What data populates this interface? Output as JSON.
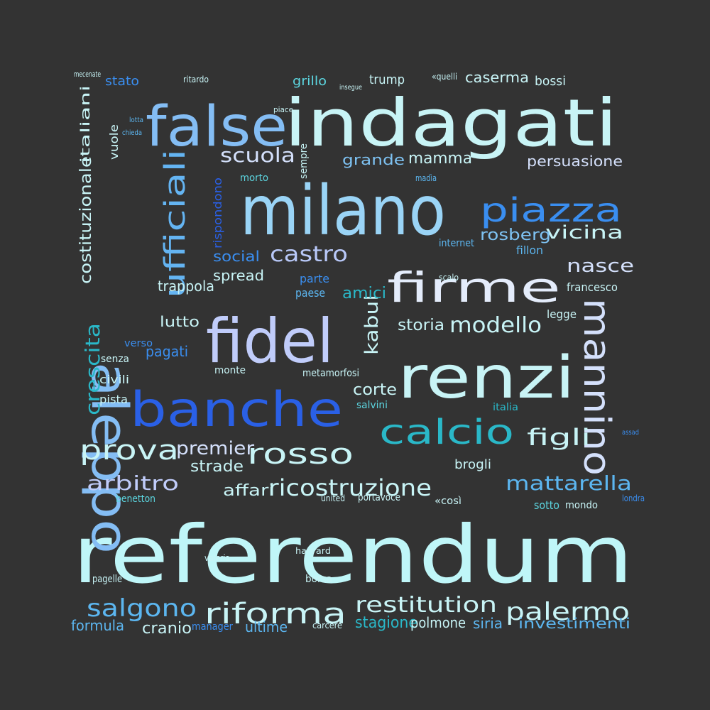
{
  "background": "#333333",
  "palette": {
    "pale": "#c8f4f6",
    "lavender": "#b8c8f8",
    "sky": "#64b4f2",
    "bright": "#3a8ef0",
    "royal": "#2a60e6",
    "teal": "#2ab8c8",
    "aqua": "#5cd6e0",
    "navy": "#1c46b4"
  },
  "words": [
    {
      "text": "referendum",
      "color": "#bff6f8"
    },
    {
      "text": "indagati",
      "color": "#c8f4f6"
    },
    {
      "text": "milano",
      "color": "#9ad4f6"
    },
    {
      "text": "false",
      "color": "#84bdf4"
    },
    {
      "text": "aleppo",
      "color": "#84bdf4"
    },
    {
      "text": "fidel",
      "color": "#c0ccfa"
    },
    {
      "text": "renzi",
      "color": "#c8f4f6"
    },
    {
      "text": "banche",
      "color": "#2a60e6"
    },
    {
      "text": "firme",
      "color": "#e4ecfb"
    },
    {
      "text": "calcio",
      "color": "#2ab8c8"
    },
    {
      "text": "mannino",
      "color": "#d4e0fb"
    },
    {
      "text": "piazza",
      "color": "#3a8ef0"
    },
    {
      "text": "ufficiali",
      "color": "#64b4f2"
    },
    {
      "text": "rosso",
      "color": "#c8f4f6"
    },
    {
      "text": "prova",
      "color": "#c8f4f6"
    },
    {
      "text": "riforma",
      "color": "#c8f4f6"
    },
    {
      "text": "ricostruzione",
      "color": "#c8f4f6"
    },
    {
      "text": "restitution",
      "color": "#c8f4f6"
    },
    {
      "text": "palermo",
      "color": "#c8f4f6"
    },
    {
      "text": "salgono",
      "color": "#5cb6f0"
    },
    {
      "text": "mattarella",
      "color": "#5cb6f0"
    },
    {
      "text": "arbitro",
      "color": "#c0ccfa"
    },
    {
      "text": "premier",
      "color": "#d4e0fb"
    },
    {
      "text": "castro",
      "color": "#b8c8f8"
    },
    {
      "text": "scuola",
      "color": "#d4e0fb"
    },
    {
      "text": "crescita",
      "color": "#2ab8c8"
    },
    {
      "text": "costituzionale",
      "color": "#c8f4f6"
    },
    {
      "text": "figli",
      "color": "#c8f4f6"
    },
    {
      "text": "modello",
      "color": "#c8f4f6"
    },
    {
      "text": "vicina",
      "color": "#c8f4f6"
    },
    {
      "text": "nasce",
      "color": "#d4e0fb"
    },
    {
      "text": "rosberg",
      "color": "#7ec2f2"
    },
    {
      "text": "persuasione",
      "color": "#d4e0fb"
    },
    {
      "text": "mamma",
      "color": "#c8f4f6"
    },
    {
      "text": "grande",
      "color": "#7ec2f2"
    },
    {
      "text": "casermа",
      "color": "#c8f4f6"
    },
    {
      "text": "kabul",
      "color": "#c8f4f6"
    },
    {
      "text": "corte",
      "color": "#c8f4f6"
    },
    {
      "text": "strade",
      "color": "#c8f4f6"
    },
    {
      "text": "affari",
      "color": "#c8f4f6"
    },
    {
      "text": "stagione",
      "color": "#2ab8c8"
    },
    {
      "text": "investimenti",
      "color": "#5cb6f0"
    },
    {
      "text": "formula",
      "color": "#5cb6f0"
    },
    {
      "text": "cranio",
      "color": "#c8f4f6"
    },
    {
      "text": "ultime",
      "color": "#5cb6f0"
    },
    {
      "text": "polmone",
      "color": "#c8f4f6"
    },
    {
      "text": "siria",
      "color": "#5cb6f0"
    },
    {
      "text": "storia",
      "color": "#c8f4f6"
    },
    {
      "text": "amici",
      "color": "#2ab8c8"
    },
    {
      "text": "social",
      "color": "#3a8ef0"
    },
    {
      "text": "spread",
      "color": "#c8f4f6"
    },
    {
      "text": "trappola",
      "color": "#c8f4f6"
    },
    {
      "text": "lutto",
      "color": "#c8f4f6"
    },
    {
      "text": "pagati",
      "color": "#3a8ef0"
    },
    {
      "text": "verso",
      "color": "#3a8ef0"
    },
    {
      "text": "civili",
      "color": "#c8f4f6"
    },
    {
      "text": "pista",
      "color": "#c8f4f6"
    },
    {
      "text": "italiani",
      "color": "#c8f4f6"
    },
    {
      "text": "vuole",
      "color": "#c8f4f6"
    },
    {
      "text": "stato",
      "color": "#3a8ef0"
    },
    {
      "text": "grillo",
      "color": "#5cd6e0"
    },
    {
      "text": "trump",
      "color": "#c8f4f6"
    },
    {
      "text": "bossi",
      "color": "#c8f4f6"
    },
    {
      "text": "rispondono",
      "color": "#2a60e6"
    },
    {
      "text": "morto",
      "color": "#5cd6e0"
    },
    {
      "text": "sempre",
      "color": "#c8f4f6"
    },
    {
      "text": "parte",
      "color": "#3a8ef0"
    },
    {
      "text": "paese",
      "color": "#5cb6f0"
    },
    {
      "text": "brogli",
      "color": "#c8f4f6"
    },
    {
      "text": "legge",
      "color": "#c8f4f6"
    },
    {
      "text": "francesco",
      "color": "#c8f4f6"
    },
    {
      "text": "internet",
      "color": "#5cb6f0"
    },
    {
      "text": "fillon",
      "color": "#5cb6f0"
    },
    {
      "text": "benetton",
      "color": "#5cd6e0"
    },
    {
      "text": "sotto",
      "color": "#5cd6e0"
    },
    {
      "text": "mondo",
      "color": "#c8f4f6"
    },
    {
      "text": "harvard",
      "color": "#c8f4f6"
    },
    {
      "text": "borsa",
      "color": "#c8f4f6"
    },
    {
      "text": "carcere",
      "color": "#c8f4f6"
    },
    {
      "text": "manager",
      "color": "#3a8ef0"
    },
    {
      "text": "pagelle",
      "color": "#c8f4f6"
    },
    {
      "text": "valeria",
      "color": "#c8f4f6"
    },
    {
      "text": "monte",
      "color": "#c8f4f6"
    },
    {
      "text": "metamorfosi",
      "color": "#c8f4f6"
    },
    {
      "text": "salvini",
      "color": "#5cd6e0"
    },
    {
      "text": "portavoce",
      "color": "#c8f4f6"
    },
    {
      "text": "«così",
      "color": "#c8f4f6"
    },
    {
      "text": "senza",
      "color": "#c8f4f6"
    },
    {
      "text": "madìa",
      "color": "#5cb6f0"
    },
    {
      "text": "«quelli",
      "color": "#c8f4f6"
    },
    {
      "text": "piace",
      "color": "#c8f4f6"
    },
    {
      "text": "insegue",
      "color": "#c8f4f6"
    },
    {
      "text": "ritardo",
      "color": "#c8f4f6"
    },
    {
      "text": "mecenate",
      "color": "#c8f4f6"
    },
    {
      "text": "lotta",
      "color": "#5cb6f0"
    },
    {
      "text": "chieda",
      "color": "#5cb6f0"
    },
    {
      "text": "italia",
      "color": "#2ab8c8"
    },
    {
      "text": "united",
      "color": "#c8f4f6"
    },
    {
      "text": "londra",
      "color": "#3a8ef0"
    },
    {
      "text": "scalo",
      "color": "#c8f4f6"
    },
    {
      "text": "assad",
      "color": "#3a8ef0"
    }
  ]
}
